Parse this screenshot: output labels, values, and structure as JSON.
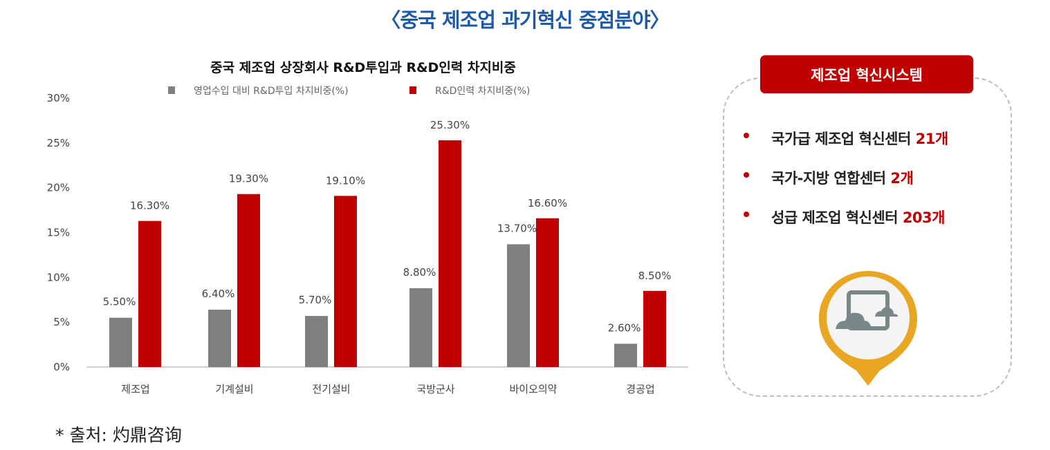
{
  "page_title": "〈중국 제조업 과기혁신 중점분야〉",
  "source": "* 출처: 灼鼎咨询",
  "chart_data": {
    "type": "bar",
    "title": "중국 제조업 상장회사 R&D투입과 R&D인력 차지비중",
    "legend_position": "top",
    "categories": [
      "제조업",
      "기계설비",
      "전기설비",
      "국방군사",
      "바이오의약",
      "경공업"
    ],
    "series": [
      {
        "name": "영업수입 대비 R&D투입 차지비중(%)",
        "color": "#7f7f7f",
        "values": [
          5.5,
          6.4,
          5.7,
          8.8,
          13.7,
          2.6
        ],
        "labels": [
          "5.50%",
          "6.40%",
          "5.70%",
          "8.80%",
          "13.70%",
          "2.60%"
        ]
      },
      {
        "name": "R&D인력 차지비중(%)",
        "color": "#c00000",
        "values": [
          16.3,
          19.3,
          19.1,
          25.3,
          16.6,
          8.5
        ],
        "labels": [
          "16.30%",
          "19.30%",
          "19.10%",
          "25.30%",
          "16.60%",
          "8.50%"
        ]
      }
    ],
    "ylim": [
      0,
      30
    ],
    "yticks": [
      "0%",
      "5%",
      "10%",
      "15%",
      "20%",
      "25%",
      "30%"
    ],
    "grid": false
  },
  "panel": {
    "header": "제조업 혁신시스템",
    "items": [
      {
        "text": "국가급 제조업 혁신센터 ",
        "count": "21개"
      },
      {
        "text": "국가-지방 연합센터 ",
        "count": "2개"
      },
      {
        "text": "성급 제조업 혁신센터 ",
        "count": "203개"
      }
    ],
    "icon": "image-pin-icon",
    "accent": "#c00000",
    "pin_color": "#e8a623"
  }
}
